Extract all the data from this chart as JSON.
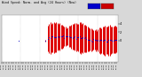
{
  "title": "Wind Speed: Normalized and Average (24 Hours) (New)",
  "bg_color": "#d8d8d8",
  "plot_bg": "#ffffff",
  "bar_color": "#dd0000",
  "avg_color": "#0000cc",
  "legend_colors": [
    "#0000cc",
    "#cc0000"
  ],
  "xlim": [
    0,
    100
  ],
  "ylim": [
    -5,
    6
  ],
  "n_total": 100,
  "data_start": 40,
  "seed": 7
}
